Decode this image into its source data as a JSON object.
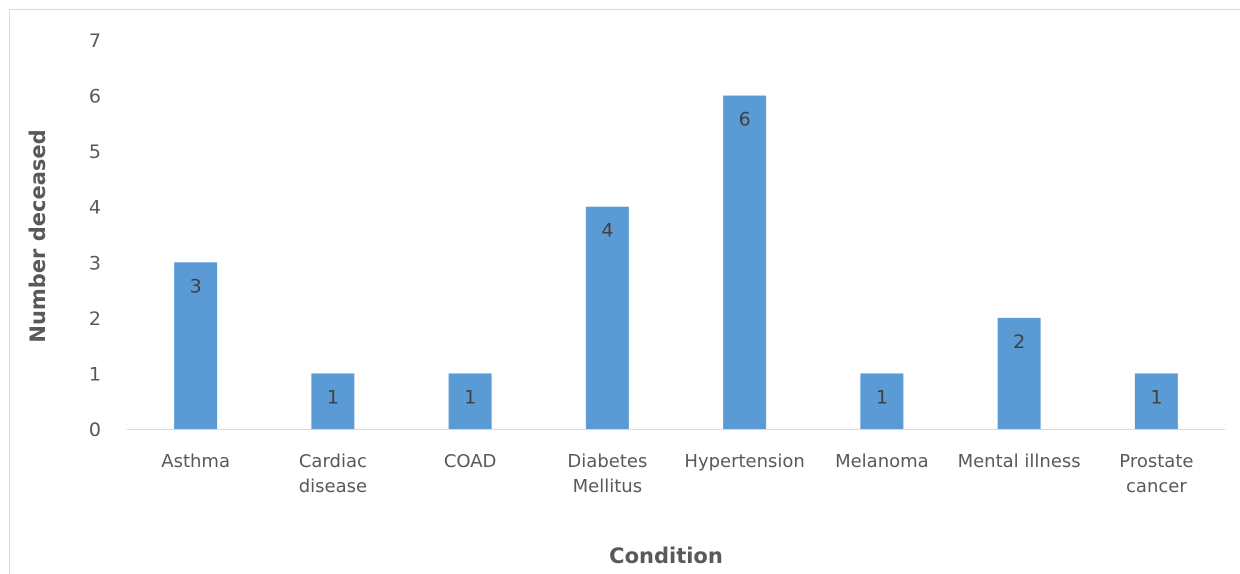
{
  "chart_data": {
    "type": "bar",
    "title": "",
    "xlabel": "Condition",
    "ylabel": "Number deceased",
    "categories": [
      [
        "Asthma"
      ],
      [
        "Cardiac",
        "disease"
      ],
      [
        "COAD"
      ],
      [
        "Diabetes",
        "Mellitus"
      ],
      [
        "Hypertension"
      ],
      [
        "Melanoma"
      ],
      [
        "Mental illness"
      ],
      [
        "Prostate",
        "cancer"
      ]
    ],
    "values": [
      3,
      1,
      1,
      4,
      6,
      1,
      2,
      1
    ],
    "ylim": [
      0,
      7
    ],
    "yticks": [
      0,
      1,
      2,
      3,
      4,
      5,
      6,
      7
    ],
    "grid": false,
    "legend": "none",
    "bar_color": "#5b9bd5"
  }
}
